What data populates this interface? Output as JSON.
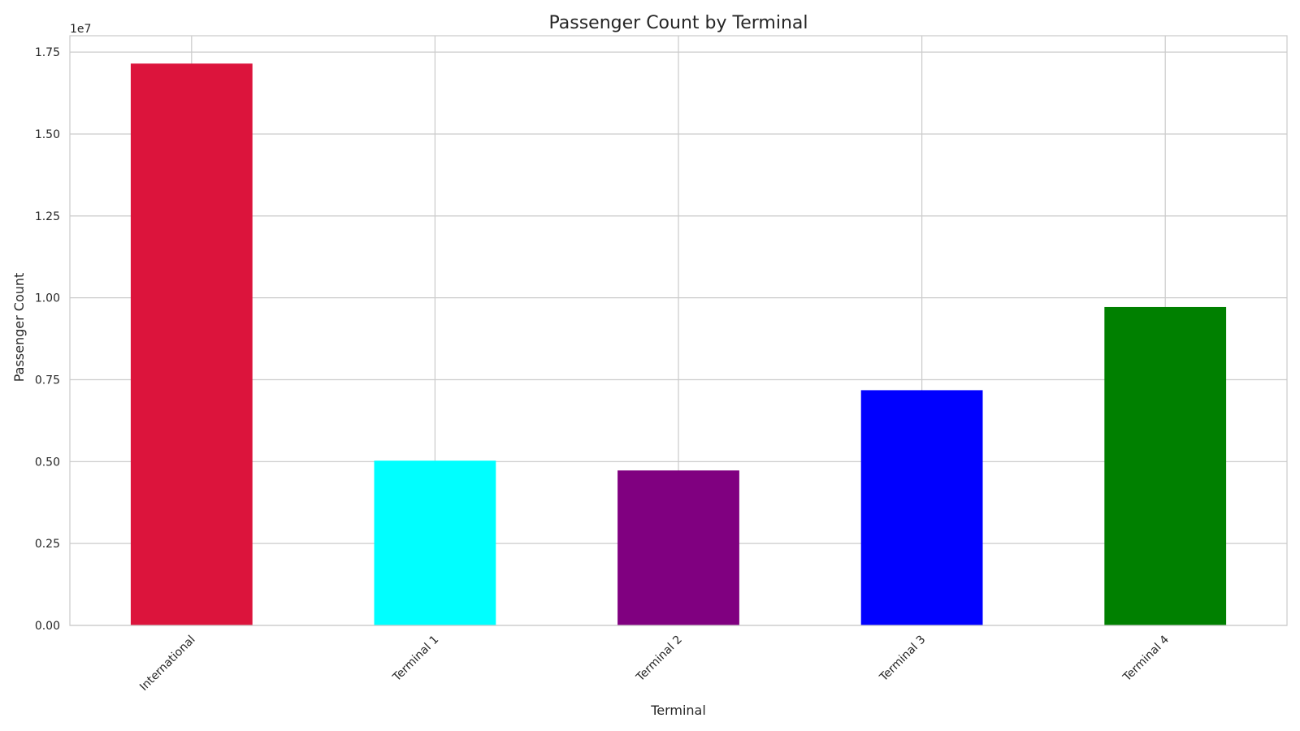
{
  "chart_data": {
    "type": "bar",
    "title": "Passenger Count by Terminal",
    "xlabel": "Terminal",
    "ylabel": "Passenger Count",
    "y_offset_label": "1e7",
    "categories": [
      "International",
      "Terminal 1",
      "Terminal 2",
      "Terminal 3",
      "Terminal 4"
    ],
    "values": [
      17150000,
      5030000,
      4730000,
      7180000,
      9720000
    ],
    "colors": [
      "#dc143c",
      "#00ffff",
      "#800080",
      "#0000ff",
      "#008000"
    ],
    "ylim": [
      0,
      18000000
    ],
    "yticks": [
      0,
      2500000,
      5000000,
      7500000,
      10000000,
      12500000,
      15000000,
      17500000
    ],
    "ytick_labels": [
      "0.00",
      "0.25",
      "0.50",
      "0.75",
      "1.00",
      "1.25",
      "1.50",
      "1.75"
    ],
    "grid": true,
    "x_tick_rotation_deg": 45
  }
}
